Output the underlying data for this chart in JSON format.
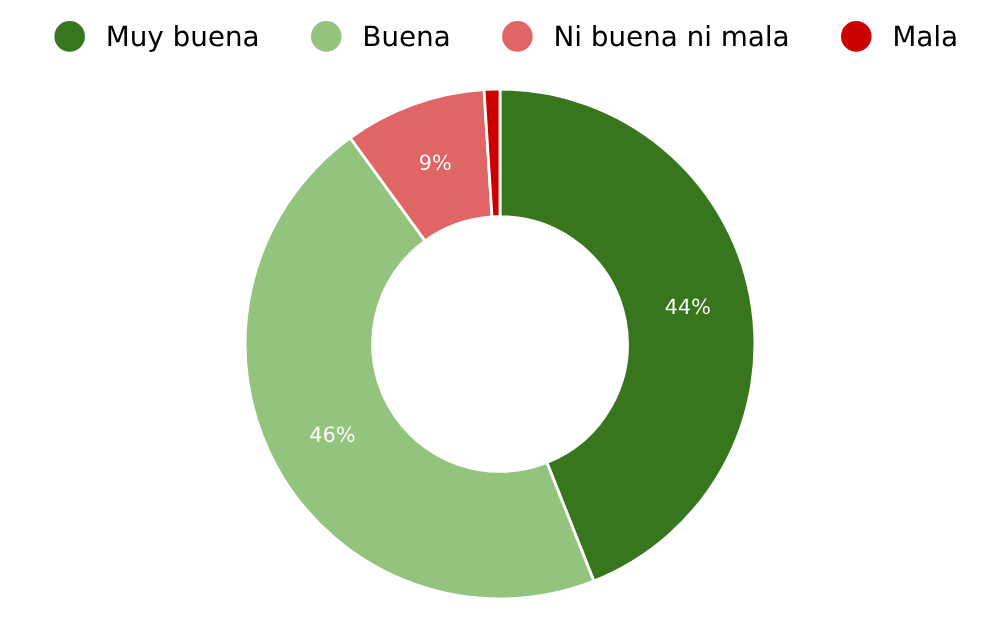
{
  "chart_data": {
    "type": "donut",
    "categories": [
      "Muy buena",
      "Buena",
      "Ni buena ni mala",
      "Mala"
    ],
    "values": [
      44,
      46,
      9,
      1
    ],
    "colors": [
      "#38761d",
      "#93c47d",
      "#e06666",
      "#cc0000"
    ],
    "value_labels": [
      "44%",
      "46%",
      "9%",
      null
    ],
    "legend": "top"
  }
}
